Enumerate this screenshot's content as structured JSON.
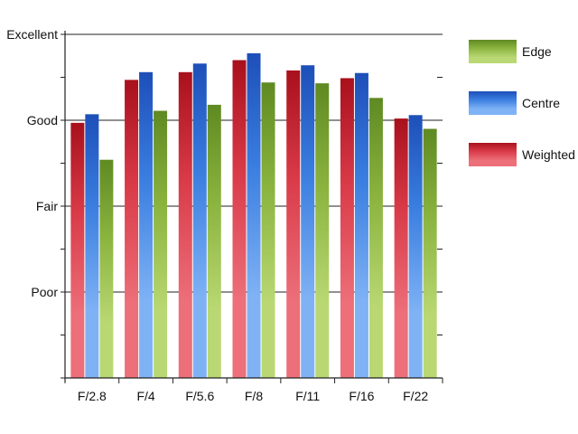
{
  "chart_data": {
    "type": "bar",
    "title": "",
    "xlabel": "",
    "ylabel": "",
    "categories": [
      "F/2.8",
      "F/4",
      "F/5.6",
      "F/8",
      "F/11",
      "F/16",
      "F/22"
    ],
    "y_tick_labels": [
      {
        "value": 1,
        "label": "Poor"
      },
      {
        "value": 2,
        "label": "Fair"
      },
      {
        "value": 3,
        "label": "Good"
      },
      {
        "value": 4,
        "label": "Excellent"
      }
    ],
    "ylim": [
      0,
      4
    ],
    "y_ticks_minor": [
      0.5,
      1.5,
      2.5,
      3.5
    ],
    "grid": true,
    "legend_position": "right",
    "series": [
      {
        "name": "Weighted",
        "key": "weighted",
        "values": [
          2.97,
          3.47,
          3.56,
          3.7,
          3.58,
          3.49,
          3.02
        ]
      },
      {
        "name": "Centre",
        "key": "centre",
        "values": [
          3.07,
          3.56,
          3.66,
          3.78,
          3.64,
          3.55,
          3.06
        ]
      },
      {
        "name": "Edge",
        "key": "edge",
        "values": [
          2.54,
          3.11,
          3.18,
          3.44,
          3.43,
          3.26,
          2.9
        ]
      }
    ],
    "legend_order": [
      "Edge",
      "Centre",
      "Weighted"
    ],
    "colors": {
      "weighted": {
        "top": "#a8101c",
        "mid": "#d93a48",
        "bottom": "#ec6f79"
      },
      "centre": {
        "top": "#1d4fb8",
        "mid": "#3a7ee0",
        "bottom": "#7fb2f5"
      },
      "edge": {
        "top": "#5f8a22",
        "mid": "#8ab33e",
        "bottom": "#b9d873"
      }
    }
  }
}
